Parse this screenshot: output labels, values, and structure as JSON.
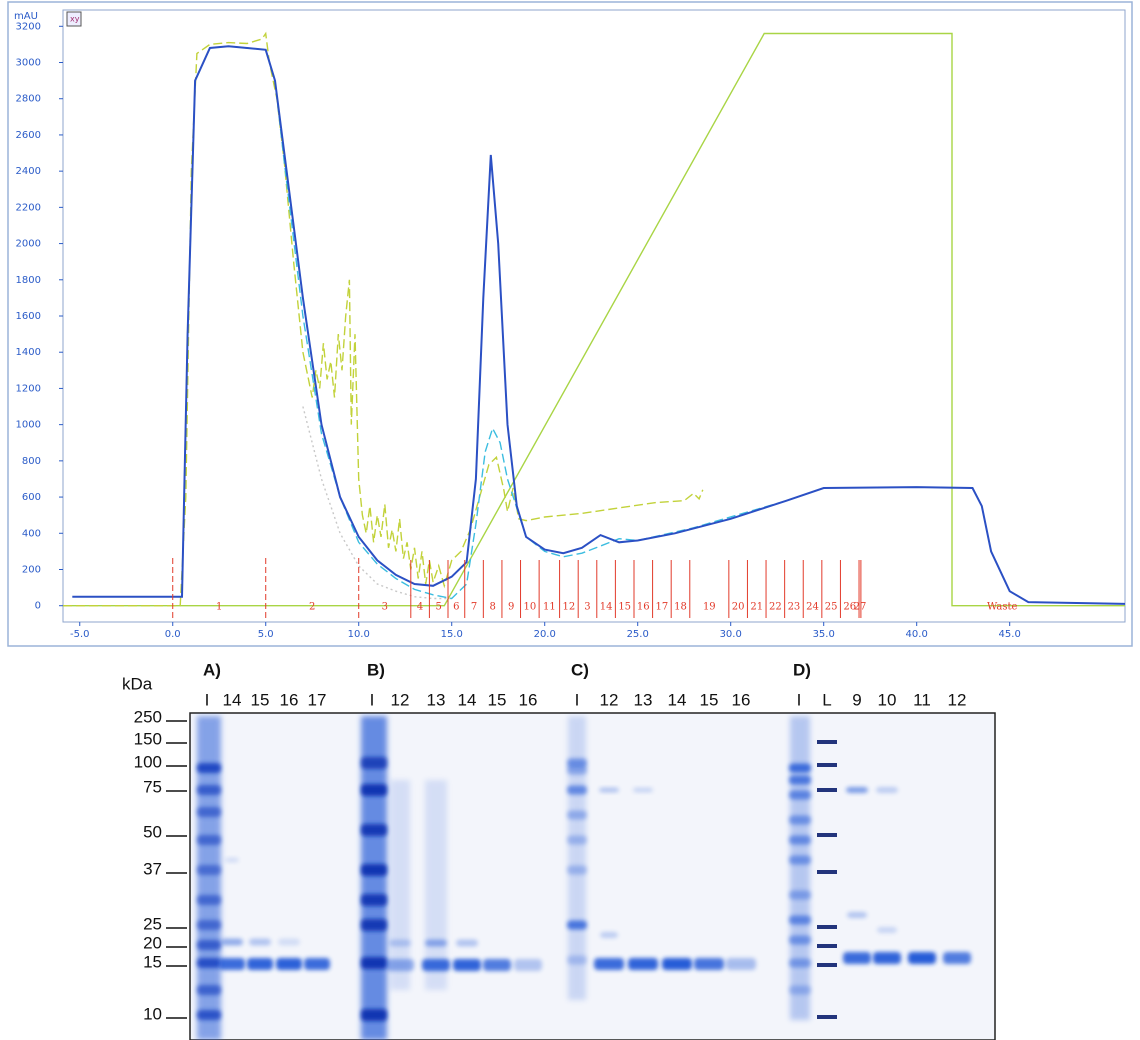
{
  "chart_data": {
    "type": "line",
    "ylabel": "mAU",
    "xlim": [
      -5.9,
      51.2
    ],
    "ylim": [
      -90,
      3290
    ],
    "xticks": [
      {
        "value": -5,
        "label": "-5.0"
      },
      {
        "value": 0,
        "label": "0.0"
      },
      {
        "value": 5,
        "label": "5.0"
      },
      {
        "value": 10,
        "label": "10.0"
      },
      {
        "value": 15,
        "label": "15.0"
      },
      {
        "value": 20,
        "label": "20.0"
      },
      {
        "value": 25,
        "label": "25.0"
      },
      {
        "value": 30,
        "label": "30.0"
      },
      {
        "value": 35,
        "label": "35.0"
      },
      {
        "value": 40,
        "label": "40.0"
      },
      {
        "value": 45,
        "label": "45.0"
      }
    ],
    "yticks": [
      0,
      200,
      400,
      600,
      800,
      1000,
      1200,
      1400,
      1600,
      1800,
      2000,
      2200,
      2400,
      2600,
      2800,
      3000,
      3200
    ],
    "series": [
      {
        "color": "#a9d545",
        "dash": "solid",
        "x": [
          -5.9,
          14.6,
          31.8,
          41.9,
          41.9,
          51.2
        ],
        "values": [
          0,
          0,
          3160,
          3160,
          0,
          0
        ]
      },
      {
        "color": "#c2d23a",
        "dash": "dashed",
        "x": [
          -5.9,
          0.4,
          0.7,
          1,
          1.3,
          2,
          3,
          4,
          4.8,
          5,
          5.2,
          5.6,
          6,
          6.5,
          7,
          7.3,
          7.5,
          7.7,
          7.9,
          8.1,
          8.3,
          8.5,
          8.7,
          8.9,
          9.1,
          9.3,
          9.5,
          9.6,
          9.8,
          10,
          10.2,
          10.4,
          10.6,
          10.8,
          11,
          11.2,
          11.4,
          11.6,
          11.8,
          12,
          12.2,
          12.4,
          12.6,
          12.8,
          13,
          13.2,
          13.4,
          13.6,
          13.8,
          14,
          14.3,
          14.6,
          15,
          15.5,
          16,
          16.5,
          17,
          17.4,
          17.8,
          18,
          18.3,
          18.6,
          19,
          20,
          22,
          24,
          26,
          27.5,
          28,
          28.3,
          28.5
        ],
        "values": [
          0,
          0,
          600,
          2400,
          3050,
          3100,
          3110,
          3105,
          3130,
          3160,
          3000,
          2800,
          2450,
          1900,
          1400,
          1250,
          1150,
          1300,
          1200,
          1450,
          1250,
          1350,
          1150,
          1500,
          1300,
          1600,
          1800,
          1000,
          1500,
          700,
          500,
          400,
          550,
          350,
          500,
          380,
          560,
          320,
          420,
          300,
          480,
          260,
          350,
          200,
          320,
          150,
          300,
          120,
          250,
          130,
          220,
          110,
          250,
          300,
          420,
          600,
          780,
          820,
          640,
          520,
          650,
          480,
          470,
          490,
          510,
          540,
          570,
          580,
          620,
          590,
          640
        ]
      },
      {
        "color": "#c8c8c8",
        "dash": "dotted",
        "x": [
          7,
          8,
          9,
          10,
          11,
          12,
          13,
          14,
          15
        ],
        "values": [
          1100,
          700,
          400,
          220,
          120,
          80,
          50,
          40,
          40
        ]
      },
      {
        "color": "#3cbde0",
        "dash": "dashed",
        "x": [
          0.5,
          0.8,
          1.2,
          2,
          3,
          4,
          5,
          5.5,
          6,
          7,
          8,
          9,
          10,
          11,
          12,
          13,
          14,
          15,
          15.8,
          16.3,
          16.8,
          17.2,
          17.6,
          18,
          19,
          20,
          21,
          22,
          23,
          24,
          25,
          28,
          33,
          35
        ],
        "values": [
          50,
          1500,
          2900,
          3080,
          3090,
          3080,
          3070,
          2900,
          2450,
          1600,
          950,
          600,
          350,
          230,
          150,
          90,
          60,
          40,
          120,
          450,
          850,
          980,
          900,
          700,
          380,
          300,
          270,
          290,
          330,
          370,
          360,
          430,
          580,
          650
        ]
      },
      {
        "color": "#2b50c4",
        "dash": "solid",
        "x": [
          -5.4,
          -0.2,
          0.5,
          0.8,
          1.2,
          2,
          3,
          4,
          5,
          5.5,
          6,
          7,
          8,
          9,
          10,
          11,
          12,
          13,
          14,
          15,
          15.8,
          16.3,
          16.7,
          17.1,
          17.5,
          18,
          18.5,
          19,
          20,
          21,
          22,
          23,
          24,
          25,
          27,
          30,
          33,
          35,
          40,
          43,
          43.5,
          44,
          45,
          46,
          51.2
        ],
        "values": [
          50,
          50,
          50,
          1500,
          2900,
          3080,
          3090,
          3080,
          3070,
          2900,
          2500,
          1700,
          1000,
          600,
          380,
          250,
          170,
          120,
          110,
          160,
          240,
          700,
          1700,
          2490,
          2000,
          1000,
          550,
          380,
          310,
          290,
          320,
          390,
          350,
          360,
          400,
          480,
          580,
          650,
          655,
          650,
          550,
          300,
          80,
          20,
          10
        ]
      }
    ],
    "fractions": {
      "boundaries": [
        0,
        5,
        10,
        12.8,
        13.8,
        14.8,
        15.7,
        16.7,
        17.7,
        18.7,
        19.7,
        20.8,
        21.8,
        22.8,
        23.8,
        24.8,
        25.8,
        26.8,
        27.8,
        29.9,
        30.9,
        31.9,
        32.9,
        33.9,
        34.9,
        35.9,
        36.9,
        37.0
      ],
      "labels": [
        "1",
        "2",
        "3",
        "4",
        "5",
        "6",
        "7",
        "8",
        "9",
        "10",
        "11",
        "12",
        "3",
        "14",
        "15",
        "16",
        "17",
        "18",
        "19",
        "20",
        "21",
        "22",
        "23",
        "24",
        "25",
        "26",
        "27",
        "Waste"
      ]
    }
  },
  "gel": {
    "unit": "kDa",
    "markers": [
      250,
      150,
      100,
      75,
      50,
      37,
      25,
      20,
      15,
      10
    ],
    "panels": [
      {
        "label": "A)",
        "lanes": [
          "I",
          "14",
          "15",
          "16",
          "17"
        ]
      },
      {
        "label": "B)",
        "lanes": [
          "I",
          "12",
          "13",
          "14",
          "15",
          "16"
        ]
      },
      {
        "label": "C)",
        "lanes": [
          "I",
          "12",
          "13",
          "14",
          "15",
          "16"
        ]
      },
      {
        "label": "D)",
        "lanes": [
          "I",
          "L",
          "9",
          "10",
          "11",
          "12"
        ]
      }
    ]
  }
}
